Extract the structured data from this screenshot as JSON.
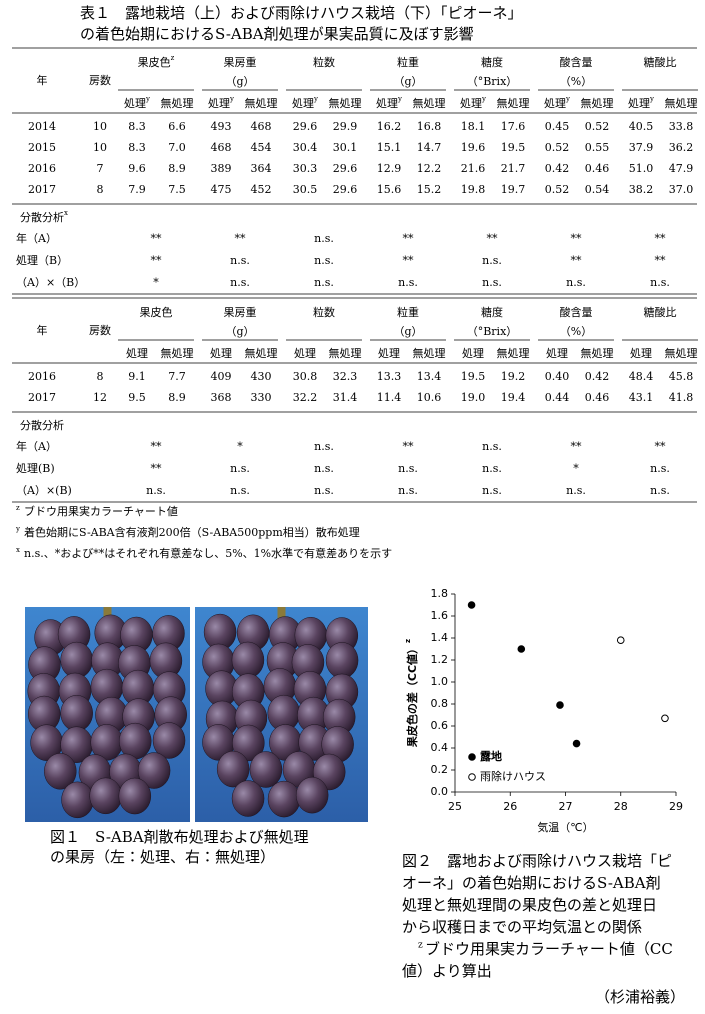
{
  "table1": {
    "title": [
      "表１　露地栽培（上）および雨除けハウス栽培（下）「ピオーネ」",
      "の着色始期におけるS-ABA剤処理が果実品質に及ぼす影響"
    ],
    "open_field": {
      "columns": {
        "year": "年",
        "clusters": "房数",
        "groups": [
          {
            "label": "果皮色",
            "mark": "z"
          },
          {
            "label": "果房重",
            "unit": "（g）"
          },
          {
            "label": "粒数"
          },
          {
            "label": "粒重",
            "unit": "（g）"
          },
          {
            "label": "糖度",
            "unit": "（°Brix）"
          },
          {
            "label": "酸含量",
            "unit": "（%）"
          },
          {
            "label": "糖酸比"
          }
        ],
        "sub": [
          {
            "label": "処理",
            "mark": "y"
          },
          {
            "label": "無処理"
          }
        ]
      },
      "rows": [
        [
          "2014",
          "10",
          "8.3",
          "6.6",
          "493",
          "468",
          "29.6",
          "29.9",
          "16.2",
          "16.8",
          "18.1",
          "17.6",
          "0.45",
          "0.52",
          "40.5",
          "33.8"
        ],
        [
          "2015",
          "10",
          "8.3",
          "7.0",
          "468",
          "454",
          "30.4",
          "30.1",
          "15.1",
          "14.7",
          "19.6",
          "19.5",
          "0.52",
          "0.55",
          "37.9",
          "36.2"
        ],
        [
          "2016",
          "7",
          "9.6",
          "8.9",
          "389",
          "364",
          "30.3",
          "29.6",
          "12.9",
          "12.2",
          "21.6",
          "21.7",
          "0.42",
          "0.46",
          "51.0",
          "47.9"
        ],
        [
          "2017",
          "8",
          "7.9",
          "7.5",
          "475",
          "452",
          "30.5",
          "29.6",
          "15.6",
          "15.2",
          "19.8",
          "19.7",
          "0.52",
          "0.54",
          "38.2",
          "37.0"
        ]
      ],
      "anova": {
        "label": "分散分析",
        "mark": "x",
        "rows": [
          {
            "label": "年（A）",
            "values": [
              "**",
              "**",
              "n.s.",
              "**",
              "**",
              "**",
              "**"
            ]
          },
          {
            "label": "処理（B）",
            "values": [
              "**",
              "n.s.",
              "n.s.",
              "**",
              "n.s.",
              "**",
              "**"
            ]
          },
          {
            "label": "（A）×（B）",
            "values": [
              "*",
              "n.s.",
              "n.s.",
              "n.s.",
              "n.s.",
              "n.s.",
              "n.s."
            ]
          }
        ]
      }
    },
    "rain_shelter": {
      "columns": {
        "year": "年",
        "clusters": "房数",
        "groups": [
          {
            "label": "果皮色"
          },
          {
            "label": "果房重",
            "unit": "（g）"
          },
          {
            "label": "粒数"
          },
          {
            "label": "粒重",
            "unit": "（g）"
          },
          {
            "label": "糖度",
            "unit": "（°Brix）"
          },
          {
            "label": "酸含量",
            "unit": "（%）"
          },
          {
            "label": "糖酸比"
          }
        ],
        "sub": [
          {
            "label": "処理"
          },
          {
            "label": "無処理"
          }
        ]
      },
      "rows": [
        [
          "2016",
          "8",
          "9.1",
          "7.7",
          "409",
          "430",
          "30.8",
          "32.3",
          "13.3",
          "13.4",
          "19.5",
          "19.2",
          "0.40",
          "0.42",
          "48.4",
          "45.8"
        ],
        [
          "2017",
          "12",
          "9.5",
          "8.9",
          "368",
          "330",
          "32.2",
          "31.4",
          "11.4",
          "10.6",
          "19.0",
          "19.4",
          "0.44",
          "0.46",
          "43.1",
          "41.8"
        ]
      ],
      "anova": {
        "label": "分散分析",
        "rows": [
          {
            "label": "年（A）",
            "values": [
              "**",
              "*",
              "n.s.",
              "**",
              "n.s.",
              "**",
              "**"
            ]
          },
          {
            "label": "処理(B)",
            "values": [
              "**",
              "n.s.",
              "n.s.",
              "n.s.",
              "n.s.",
              "*",
              "n.s."
            ]
          },
          {
            "label": "（A）×(B)",
            "values": [
              "n.s.",
              "n.s.",
              "n.s.",
              "n.s.",
              "n.s.",
              "n.s.",
              "n.s."
            ]
          }
        ]
      }
    },
    "footnotes": [
      {
        "mark": "z",
        "text": "ブドウ用果実カラーチャート値"
      },
      {
        "mark": "y",
        "text": "着色始期にS-ABA含有液剤200倍（S-ABA500ppm相当）散布処理"
      },
      {
        "mark": "x",
        "text": "n.s.、*および**はそれぞれ有意差なし、5%、1%水準で有意差ありを示す"
      }
    ]
  },
  "figure1": {
    "caption": [
      "図１　S-ABA剤散布処理および無処理",
      "の果房（左：処理、右：無処理）"
    ]
  },
  "chart_data": {
    "type": "scatter",
    "xlabel": "気温（℃）",
    "ylabel": "果皮色の差（CC値）",
    "ylabel_mark": "z",
    "xlim": [
      25,
      29
    ],
    "xticks": [
      25,
      26,
      27,
      28,
      29
    ],
    "ylim": [
      0,
      1.8
    ],
    "yticks": [
      {
        "value": 0,
        "label": "0.0"
      },
      0.2,
      0.4,
      0.6,
      0.8,
      {
        "value": 1,
        "label": "1.0"
      },
      1.2,
      1.4,
      1.6,
      1.8
    ],
    "legend": "lower left",
    "series": [
      {
        "name": "露地",
        "marker": "filled",
        "color": "#000000",
        "x": [
          25.3,
          26.2,
          26.9,
          27.2
        ],
        "values": [
          1.7,
          1.3,
          0.79,
          0.44
        ]
      },
      {
        "name": "雨除けハウス",
        "marker": "open",
        "color": "#000000",
        "x": [
          28.0,
          28.8
        ],
        "values": [
          1.38,
          0.67
        ]
      }
    ]
  },
  "figure2": {
    "caption": [
      "図２　露地および雨除けハウス栽培「ピ",
      "オーネ」の着色始期におけるS-ABA剤",
      "処理と無処理間の果皮色の差と処理日",
      "から収穫日までの平均気温との関係"
    ],
    "note": {
      "mark": "z",
      "lines": [
        "ブドウ用果実カラーチャート値（CC",
        "値）より算出"
      ]
    }
  },
  "author": "（杉浦裕義）"
}
